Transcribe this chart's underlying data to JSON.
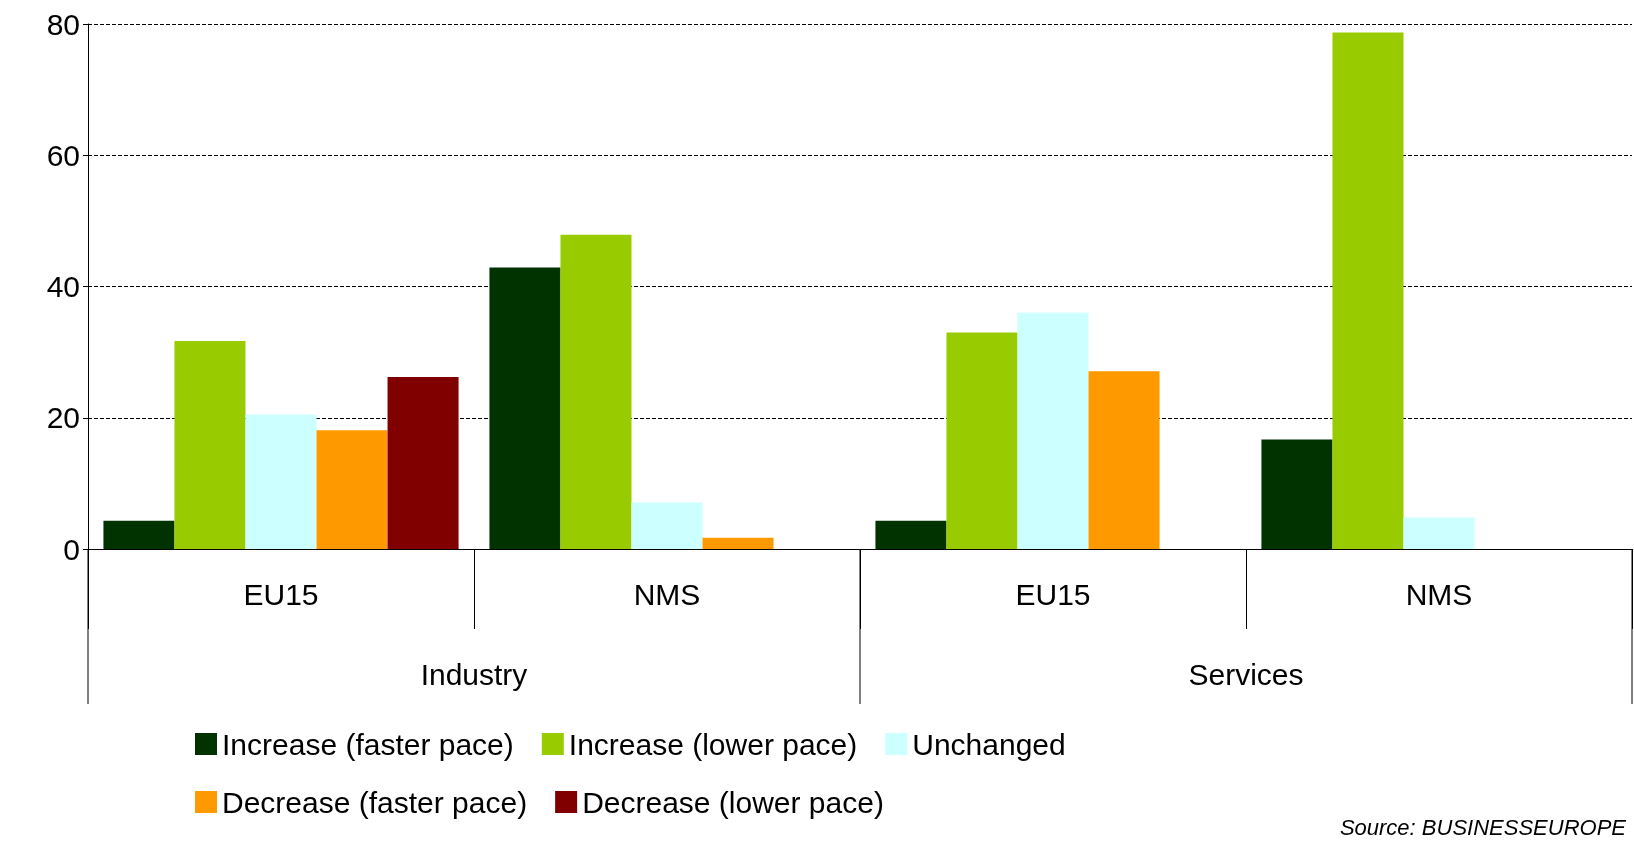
{
  "chart_data": {
    "type": "bar",
    "categories": [
      "EU15",
      "NMS",
      "EU15",
      "NMS"
    ],
    "series": [
      {
        "name": "Increase (faster pace)",
        "color": "#003300",
        "values": [
          4.3,
          42.9,
          4.3,
          16.7
        ]
      },
      {
        "name": "Increase (lower pace)",
        "color": "#99cc00",
        "values": [
          31.7,
          47.9,
          33,
          78.7
        ]
      },
      {
        "name": "Unchanged",
        "color": "#ccffff",
        "values": [
          20.5,
          7.1,
          36,
          4.8
        ]
      },
      {
        "name": "Decrease (faster pace)",
        "color": "#ff9900",
        "values": [
          18.1,
          1.7,
          27.1,
          null
        ]
      },
      {
        "name": "Decrease (lower pace)",
        "color": "#800000",
        "values": [
          26.2,
          null,
          null,
          null
        ]
      }
    ],
    "ylim": [
      0,
      80
    ],
    "yticks": [
      0,
      20,
      40,
      60,
      80
    ],
    "grid": "y",
    "legend": "bottom",
    "annotations": [
      "Industry",
      "Services",
      "Source: BUSINESSEUROPE"
    ]
  }
}
